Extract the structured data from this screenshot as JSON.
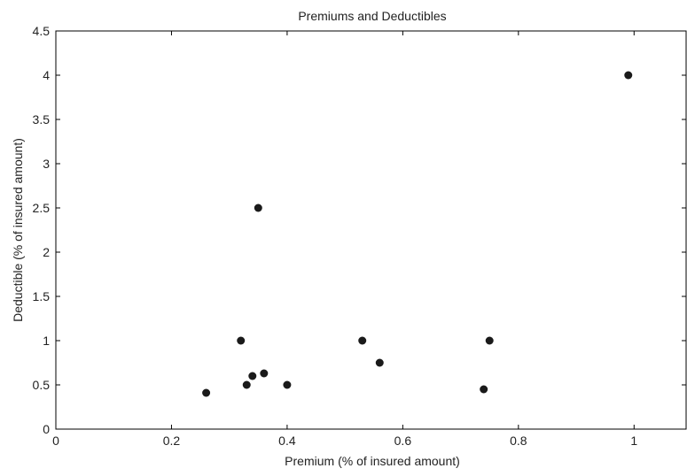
{
  "chart_data": {
    "type": "scatter",
    "title": "Premiums and Deductibles",
    "xlabel": "Premium (% of insured amount)",
    "ylabel": "Deductible (% of insured amount)",
    "xlim": [
      0,
      1.09
    ],
    "ylim": [
      0,
      4.5
    ],
    "xticks": [
      "0",
      "0.2",
      "0.4",
      "0.6",
      "0.8",
      "1"
    ],
    "yticks": [
      "0",
      "0.5",
      "1",
      "1.5",
      "2",
      "2.5",
      "3",
      "3.5",
      "4",
      "4.5"
    ],
    "grid": false,
    "series": [
      {
        "points": [
          {
            "x": 0.26,
            "y": 0.41
          },
          {
            "x": 0.32,
            "y": 1.0
          },
          {
            "x": 0.33,
            "y": 0.5
          },
          {
            "x": 0.34,
            "y": 0.6
          },
          {
            "x": 0.35,
            "y": 2.5
          },
          {
            "x": 0.36,
            "y": 0.63
          },
          {
            "x": 0.4,
            "y": 0.5
          },
          {
            "x": 0.53,
            "y": 1.0
          },
          {
            "x": 0.56,
            "y": 0.75
          },
          {
            "x": 0.74,
            "y": 0.45
          },
          {
            "x": 0.75,
            "y": 1.0
          },
          {
            "x": 0.99,
            "y": 4.0
          }
        ],
        "color": "#1a1a1a"
      }
    ]
  }
}
